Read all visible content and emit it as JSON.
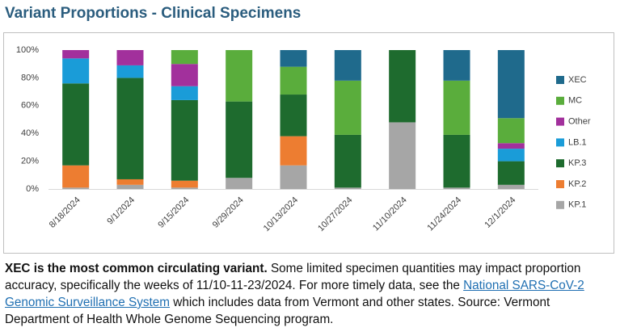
{
  "chart_data": {
    "type": "bar",
    "stacked": true,
    "title": "Variant Proportions - Clinical Specimens",
    "categories": [
      "8/18/2024",
      "9/1/2024",
      "9/15/2024",
      "9/29/2024",
      "10/13/2024",
      "10/27/2024",
      "11/10/2024",
      "11/24/2024",
      "12/1/2024"
    ],
    "series": [
      {
        "name": "KP.1",
        "color": "#a6a6a6",
        "values": [
          1,
          3,
          1,
          8,
          17,
          1,
          48,
          1,
          3
        ]
      },
      {
        "name": "KP.2",
        "color": "#ed7d31",
        "values": [
          16,
          4,
          5,
          0,
          21,
          0,
          0,
          0,
          0
        ]
      },
      {
        "name": "KP.3",
        "color": "#1e6b2e",
        "values": [
          59,
          73,
          58,
          55,
          30,
          38,
          52,
          38,
          17
        ]
      },
      {
        "name": "LB.1",
        "color": "#1a9cd8",
        "values": [
          18,
          9,
          10,
          0,
          0,
          0,
          0,
          0,
          9
        ]
      },
      {
        "name": "Other",
        "color": "#a2309c",
        "values": [
          6,
          11,
          16,
          0,
          0,
          0,
          0,
          0,
          4
        ]
      },
      {
        "name": "MC",
        "color": "#5aad3c",
        "values": [
          0,
          0,
          10,
          37,
          20,
          39,
          0,
          39,
          18
        ]
      },
      {
        "name": "XEC",
        "color": "#1f6a8c",
        "values": [
          0,
          0,
          0,
          0,
          12,
          22,
          0,
          22,
          49
        ]
      }
    ],
    "ylim": [
      0,
      100
    ],
    "yticks": [
      {
        "value": 0,
        "label": "0%"
      },
      {
        "value": 20,
        "label": "20%"
      },
      {
        "value": 40,
        "label": "40%"
      },
      {
        "value": 60,
        "label": "60%"
      },
      {
        "value": 80,
        "label": "80%"
      },
      {
        "value": 100,
        "label": "100%"
      }
    ],
    "grid": false,
    "legend": "right"
  },
  "note": {
    "bold": "XEC is the most common circulating variant.",
    "text1": " Some limited specimen quantities may impact proportion accuracy, specifically the weeks of 11/10-11-23/2024. For more timely data, see the ",
    "link": "National SARS-CoV-2 Genomic Surveillance System",
    "text2": " which includes data from Vermont and other states. Source: Vermont Department of Health Whole Genome Sequencing program."
  }
}
